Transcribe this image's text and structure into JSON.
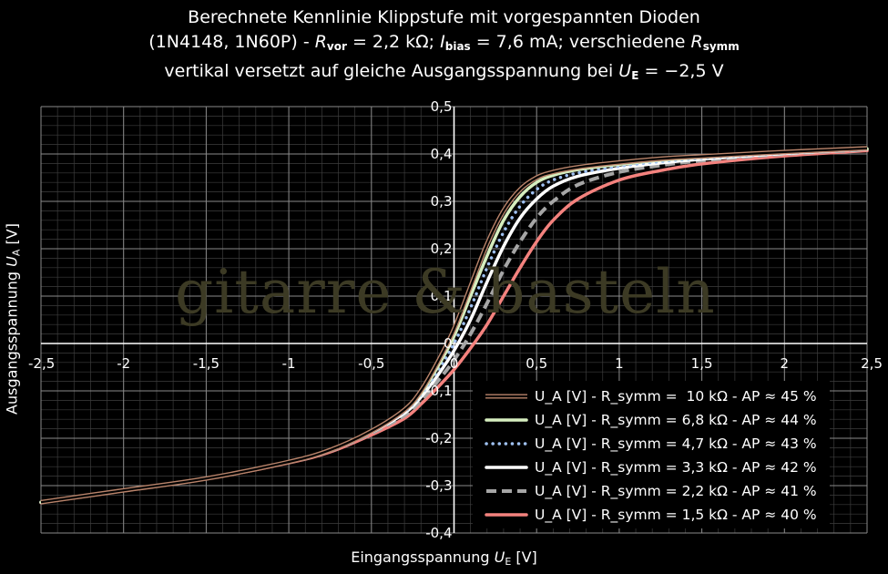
{
  "title": {
    "line1": "Berechnete Kennlinie Klippstufe mit vorgespannten Dioden",
    "line2_a": "(1N4148, 1N60P) - ",
    "r_vor_sym": "R",
    "r_vor_sub": "vor",
    "line2_b": " = 2,2 kΩ; ",
    "i_bias_sym": "I",
    "i_bias_sub": "bias",
    "line2_c": " = 7,6 mA; verschiedene ",
    "r_symm_sym": "R",
    "r_symm_sub": "symm",
    "line3_a": "vertikal versetzt auf gleiche Ausgangsspannung bei ",
    "u_e_sym": "U",
    "u_e_sub": "E",
    "line3_b": " = −2,5 V"
  },
  "watermark": "gitarre & basteln",
  "xaxis": {
    "label_text": "Eingangsspannung ",
    "sym": "U",
    "sub": "E",
    "unit": " [V]"
  },
  "yaxis": {
    "label_text": "Ausgangsspannung ",
    "sym": "U",
    "sub": "A",
    "unit": " [V]"
  },
  "chart_data": {
    "type": "line",
    "xlim": [
      -2.5,
      2.5
    ],
    "ylim": [
      -0.4,
      0.5
    ],
    "xticks": [
      "-2,5",
      "-2",
      "-1,5",
      "-1",
      "-0,5",
      "0",
      "0,5",
      "1",
      "1,5",
      "2",
      "2,5"
    ],
    "xtick_values": [
      -2.5,
      -2,
      -1.5,
      -1,
      -0.5,
      0,
      0.5,
      1,
      1.5,
      2,
      2.5
    ],
    "yticks": [
      "0,5",
      "0,4",
      "0,3",
      "0,2",
      "0,1",
      "0",
      "-0,1",
      "-0,2",
      "-0,3",
      "-0,4"
    ],
    "ytick_values": [
      0.5,
      0.4,
      0.3,
      0.2,
      0.1,
      0,
      -0.1,
      -0.2,
      -0.3,
      -0.4
    ],
    "grid": true,
    "legend_position": "bottom-right",
    "x": [
      -2.5,
      -2,
      -1.5,
      -1,
      -0.75,
      -0.5,
      -0.3,
      -0.2,
      -0.1,
      0,
      0.1,
      0.2,
      0.3,
      0.4,
      0.5,
      0.6,
      0.75,
      1,
      1.25,
      1.5,
      2,
      2.5
    ],
    "series": [
      {
        "name": "U_A [V] - R_symm =  10 kΩ - AP ≈ 45 %",
        "color": "#b8836a",
        "style": "double",
        "values": [
          -0.335,
          -0.31,
          -0.285,
          -0.25,
          -0.225,
          -0.185,
          -0.14,
          -0.1,
          -0.04,
          0.03,
          0.12,
          0.21,
          0.28,
          0.325,
          0.35,
          0.362,
          0.372,
          0.382,
          0.39,
          0.395,
          0.404,
          0.412
        ]
      },
      {
        "name": "U_A [V] - R_symm = 6,8 kΩ - AP ≈ 44 %",
        "color": "#d6eebf",
        "style": "solid",
        "values": [
          -0.335,
          -0.31,
          -0.285,
          -0.25,
          -0.225,
          -0.185,
          -0.142,
          -0.105,
          -0.05,
          0.015,
          0.1,
          0.185,
          0.26,
          0.31,
          0.34,
          0.355,
          0.367,
          0.378,
          0.387,
          0.393,
          0.403,
          0.411
        ]
      },
      {
        "name": "U_A [V] - R_symm = 4,7 kΩ - AP ≈ 43 %",
        "color": "#9fc1f2",
        "style": "dotted",
        "values": [
          -0.335,
          -0.31,
          -0.285,
          -0.25,
          -0.225,
          -0.186,
          -0.144,
          -0.108,
          -0.058,
          0.0,
          0.075,
          0.16,
          0.235,
          0.29,
          0.325,
          0.345,
          0.36,
          0.374,
          0.384,
          0.391,
          0.402,
          0.41
        ]
      },
      {
        "name": "U_A [V] - R_symm = 3,3 kΩ - AP ≈ 42 %",
        "color": "#ffffff",
        "style": "solid",
        "values": [
          -0.335,
          -0.31,
          -0.285,
          -0.25,
          -0.226,
          -0.187,
          -0.147,
          -0.113,
          -0.068,
          -0.015,
          0.05,
          0.13,
          0.205,
          0.265,
          0.305,
          0.332,
          0.353,
          0.37,
          0.381,
          0.389,
          0.401,
          0.41
        ]
      },
      {
        "name": "U_A [V] - R_symm = 2,2 kΩ - AP ≈ 41 %",
        "color": "#a6a6a6",
        "style": "dashed",
        "values": [
          -0.335,
          -0.31,
          -0.285,
          -0.251,
          -0.227,
          -0.189,
          -0.152,
          -0.12,
          -0.08,
          -0.035,
          0.02,
          0.085,
          0.155,
          0.215,
          0.265,
          0.3,
          0.335,
          0.362,
          0.376,
          0.386,
          0.4,
          0.409
        ]
      },
      {
        "name": "U_A [V] - R_symm = 1,5 kΩ - AP ≈ 40 %",
        "color": "#f4827e",
        "style": "solid",
        "values": [
          -0.336,
          -0.311,
          -0.286,
          -0.252,
          -0.229,
          -0.193,
          -0.158,
          -0.128,
          -0.093,
          -0.055,
          -0.01,
          0.04,
          0.1,
          0.16,
          0.215,
          0.26,
          0.305,
          0.345,
          0.365,
          0.379,
          0.396,
          0.407
        ]
      }
    ]
  }
}
